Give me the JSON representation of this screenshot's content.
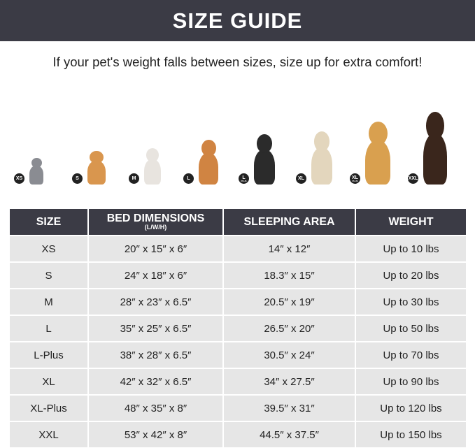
{
  "header": {
    "title": "SIZE GUIDE"
  },
  "subtitle": "If your pet's weight falls between sizes, size up for extra comfort!",
  "pets": [
    {
      "badge": "XS",
      "badge_sub": "",
      "animal": "cat",
      "color": "#8a8c92"
    },
    {
      "badge": "S",
      "badge_sub": "",
      "animal": "pomeranian",
      "color": "#d9964e"
    },
    {
      "badge": "M",
      "badge_sub": "",
      "animal": "french-bulldog",
      "color": "#e8e4df"
    },
    {
      "badge": "L",
      "badge_sub": "",
      "animal": "shiba-inu",
      "color": "#d08442"
    },
    {
      "badge": "L",
      "badge_sub": "PLUS",
      "animal": "border-collie",
      "color": "#2b2b2b"
    },
    {
      "badge": "XL",
      "badge_sub": "",
      "animal": "labrador",
      "color": "#e3d6bd"
    },
    {
      "badge": "XL",
      "badge_sub": "PLUS",
      "animal": "golden-retriever",
      "color": "#d9a04f"
    },
    {
      "badge": "XXL",
      "badge_sub": "",
      "animal": "doberman",
      "color": "#3a261c"
    }
  ],
  "table": {
    "headers": {
      "size": "SIZE",
      "bed": "BED DIMENSIONS",
      "bed_sub": "(L/W/H)",
      "area": "SLEEPING AREA",
      "weight": "WEIGHT"
    },
    "rows": [
      {
        "size": "XS",
        "bed": "20″ x 15″ x 6″",
        "area": "14″ x 12″",
        "weight": "Up to 10 lbs"
      },
      {
        "size": "S",
        "bed": "24″ x 18″ x 6″",
        "area": "18.3″ x 15″",
        "weight": "Up to 20 lbs"
      },
      {
        "size": "M",
        "bed": "28″ x 23″ x 6.5″",
        "area": "20.5″ x 19″",
        "weight": "Up to 30 lbs"
      },
      {
        "size": "L",
        "bed": "35″ x 25″ x 6.5″",
        "area": "26.5″ x 20″",
        "weight": "Up to 50 lbs"
      },
      {
        "size": "L-Plus",
        "bed": "38″ x 28″ x 6.5″",
        "area": "30.5″ x 24″",
        "weight": "Up to 70 lbs"
      },
      {
        "size": "XL",
        "bed": "42″ x 32″ x 6.5″",
        "area": "34″ x 27.5″",
        "weight": "Up to 90 lbs"
      },
      {
        "size": "XL-Plus",
        "bed": "48″ x 35″ x 8″",
        "area": "39.5″ x 31″",
        "weight": "Up to 120 lbs"
      },
      {
        "size": "XXL",
        "bed": "53″ x 42″ x 8″",
        "area": "44.5″ x 37.5″",
        "weight": "Up to 150 lbs"
      }
    ]
  }
}
